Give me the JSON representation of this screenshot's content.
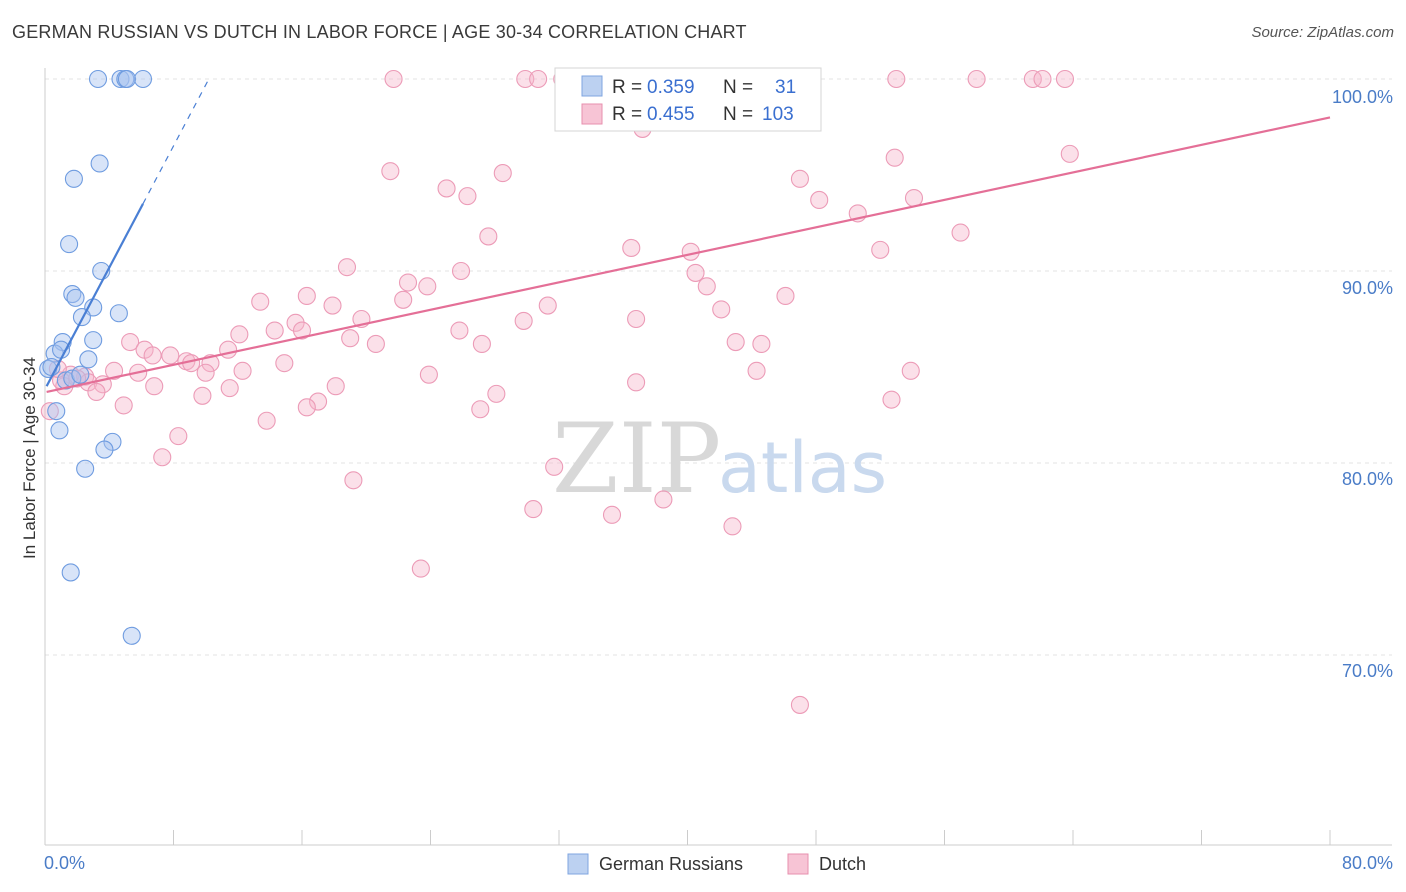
{
  "chart_data": {
    "type": "scatter",
    "title": "GERMAN RUSSIAN VS DUTCH IN LABOR FORCE | AGE 30-34 CORRELATION CHART",
    "source": "Source: ZipAtlas.com",
    "ylabel": "In Labor Force | Age 30-34",
    "xlabel": "",
    "xlim": [
      0,
      80
    ],
    "ylim": [
      60.5,
      101.5
    ],
    "x_tick_labels": [
      "0.0%",
      "80.0%"
    ],
    "y_ticks": [
      70,
      80,
      90,
      100
    ],
    "y_tick_labels": [
      "70.0%",
      "80.0%",
      "90.0%",
      "100.0%"
    ],
    "watermark": [
      "ZIP",
      "atlas"
    ],
    "colors": {
      "german_russians": "#4a7fd4",
      "dutch": "#e46f97"
    },
    "legend": [
      {
        "series": "German Russians",
        "r_label": "R =",
        "r": "0.359",
        "n_label": "N =",
        "n": "31"
      },
      {
        "series": "Dutch",
        "r_label": "R =",
        "r": "0.455",
        "n_label": "N =",
        "n": "103"
      }
    ],
    "series": [
      {
        "name": "German Russians",
        "trend": {
          "x": [
            0.1,
            6.1
          ],
          "y": [
            84.0,
            93.5
          ],
          "dashed_to": [
            10.2,
            100.0
          ]
        },
        "points": [
          [
            3.3,
            100
          ],
          [
            4.7,
            100
          ],
          [
            5.0,
            100
          ],
          [
            6.1,
            100
          ],
          [
            5.1,
            100
          ],
          [
            3.4,
            95.6
          ],
          [
            1.8,
            94.8
          ],
          [
            1.5,
            91.4
          ],
          [
            3.5,
            90.0
          ],
          [
            1.7,
            88.8
          ],
          [
            1.9,
            88.6
          ],
          [
            3.0,
            88.1
          ],
          [
            2.3,
            87.6
          ],
          [
            4.6,
            87.8
          ],
          [
            1.1,
            86.3
          ],
          [
            3.0,
            86.4
          ],
          [
            0.6,
            85.7
          ],
          [
            1.0,
            85.9
          ],
          [
            2.7,
            85.4
          ],
          [
            0.2,
            84.9
          ],
          [
            0.4,
            85.0
          ],
          [
            1.3,
            84.3
          ],
          [
            1.7,
            84.4
          ],
          [
            2.2,
            84.6
          ],
          [
            0.7,
            82.7
          ],
          [
            0.9,
            81.7
          ],
          [
            4.2,
            81.1
          ],
          [
            3.7,
            80.7
          ],
          [
            2.5,
            79.7
          ],
          [
            1.6,
            74.3
          ],
          [
            5.4,
            71.0
          ]
        ]
      },
      {
        "name": "Dutch",
        "trend": {
          "x": [
            0.1,
            80.0
          ],
          "y": [
            83.7,
            98.0
          ]
        },
        "points": [
          [
            21.7,
            100
          ],
          [
            29.9,
            100
          ],
          [
            30.7,
            100
          ],
          [
            32.2,
            100
          ],
          [
            42.0,
            100
          ],
          [
            47.7,
            100
          ],
          [
            53.0,
            100
          ],
          [
            58.0,
            100
          ],
          [
            61.5,
            100
          ],
          [
            62.1,
            100
          ],
          [
            63.5,
            100
          ],
          [
            44.0,
            99.6
          ],
          [
            47.0,
            98.3
          ],
          [
            37.2,
            97.4
          ],
          [
            63.8,
            96.1
          ],
          [
            52.9,
            95.9
          ],
          [
            21.5,
            95.2
          ],
          [
            28.5,
            95.1
          ],
          [
            47.0,
            94.8
          ],
          [
            25.0,
            94.3
          ],
          [
            26.3,
            93.9
          ],
          [
            48.2,
            93.7
          ],
          [
            54.1,
            93.8
          ],
          [
            50.6,
            93.0
          ],
          [
            57.0,
            92.0
          ],
          [
            27.6,
            91.8
          ],
          [
            36.5,
            91.2
          ],
          [
            40.2,
            91.0
          ],
          [
            52.0,
            91.1
          ],
          [
            18.8,
            90.2
          ],
          [
            25.9,
            90.0
          ],
          [
            40.5,
            89.9
          ],
          [
            22.6,
            89.4
          ],
          [
            23.8,
            89.2
          ],
          [
            41.2,
            89.2
          ],
          [
            16.3,
            88.7
          ],
          [
            22.3,
            88.5
          ],
          [
            13.4,
            88.4
          ],
          [
            17.9,
            88.2
          ],
          [
            31.3,
            88.2
          ],
          [
            42.1,
            88.0
          ],
          [
            46.1,
            88.7
          ],
          [
            19.7,
            87.5
          ],
          [
            15.6,
            87.3
          ],
          [
            29.8,
            87.4
          ],
          [
            36.8,
            87.5
          ],
          [
            14.3,
            86.9
          ],
          [
            16.0,
            86.9
          ],
          [
            25.8,
            86.9
          ],
          [
            12.1,
            86.7
          ],
          [
            19.0,
            86.5
          ],
          [
            20.6,
            86.2
          ],
          [
            27.2,
            86.2
          ],
          [
            43.0,
            86.3
          ],
          [
            44.6,
            86.2
          ],
          [
            5.3,
            86.3
          ],
          [
            11.4,
            85.9
          ],
          [
            6.2,
            85.9
          ],
          [
            6.7,
            85.6
          ],
          [
            7.8,
            85.6
          ],
          [
            8.8,
            85.3
          ],
          [
            9.1,
            85.2
          ],
          [
            10.3,
            85.2
          ],
          [
            14.9,
            85.2
          ],
          [
            4.3,
            84.8
          ],
          [
            5.8,
            84.7
          ],
          [
            12.3,
            84.8
          ],
          [
            23.9,
            84.6
          ],
          [
            44.3,
            84.8
          ],
          [
            53.9,
            84.8
          ],
          [
            1.6,
            84.6
          ],
          [
            2.5,
            84.5
          ],
          [
            2.7,
            84.2
          ],
          [
            3.6,
            84.1
          ],
          [
            3.2,
            83.7
          ],
          [
            1.2,
            84.0
          ],
          [
            36.8,
            84.2
          ],
          [
            18.1,
            84.0
          ],
          [
            11.5,
            83.9
          ],
          [
            9.8,
            83.5
          ],
          [
            28.1,
            83.6
          ],
          [
            17.0,
            83.2
          ],
          [
            52.7,
            83.3
          ],
          [
            16.3,
            82.9
          ],
          [
            27.1,
            82.8
          ],
          [
            4.9,
            83.0
          ],
          [
            13.8,
            82.2
          ],
          [
            8.3,
            81.4
          ],
          [
            7.3,
            80.3
          ],
          [
            31.7,
            79.8
          ],
          [
            19.2,
            79.1
          ],
          [
            38.5,
            78.1
          ],
          [
            30.4,
            77.6
          ],
          [
            35.3,
            77.3
          ],
          [
            42.8,
            76.7
          ],
          [
            23.4,
            74.5
          ],
          [
            47.0,
            67.4
          ],
          [
            0.3,
            82.7
          ],
          [
            1.0,
            84.3
          ],
          [
            0.8,
            84.9
          ],
          [
            2.0,
            84.4
          ],
          [
            6.8,
            84.0
          ],
          [
            10.0,
            84.7
          ]
        ]
      }
    ]
  }
}
